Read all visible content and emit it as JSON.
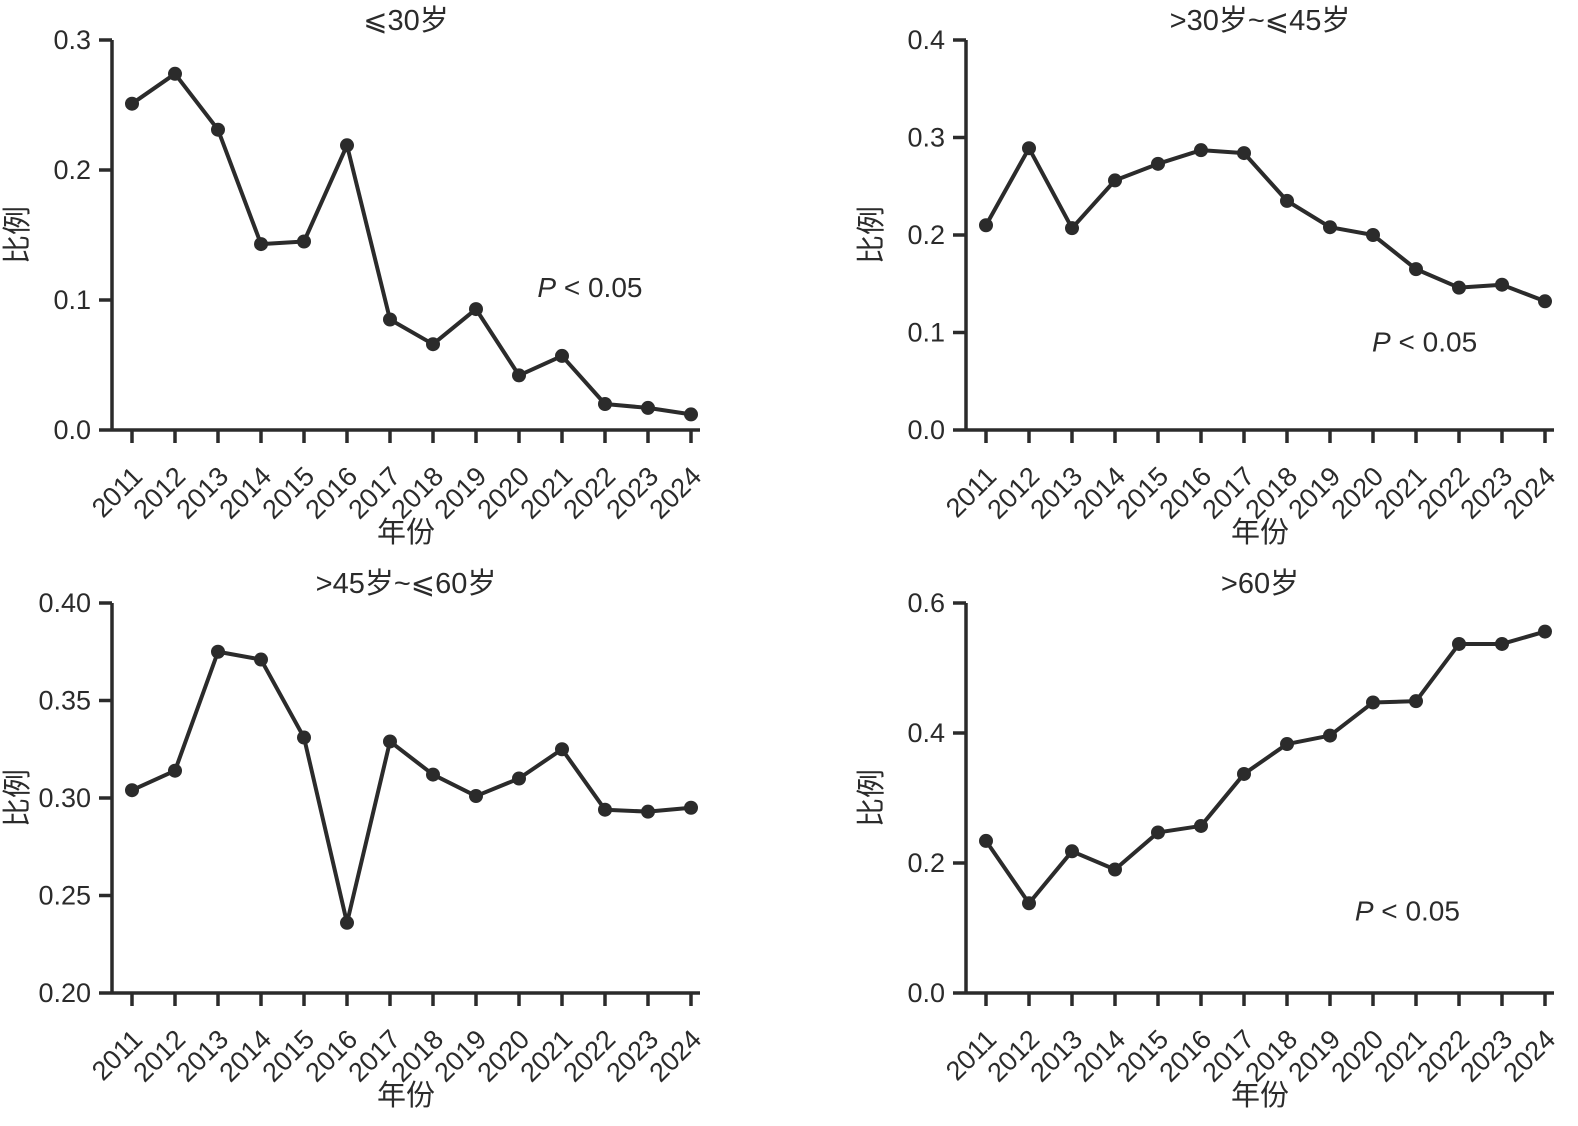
{
  "page": {
    "background": "#ffffff",
    "ink": "#2b2b2b"
  },
  "chart_data": [
    {
      "id": "age-le-30",
      "type": "line",
      "title": "⩽30岁",
      "xlabel": "年份",
      "ylabel": "比例",
      "categories": [
        "2011",
        "2012",
        "2013",
        "2014",
        "2015",
        "2016",
        "2017",
        "2018",
        "2019",
        "2020",
        "2021",
        "2022",
        "2023",
        "2024"
      ],
      "values": [
        0.251,
        0.274,
        0.231,
        0.143,
        0.145,
        0.219,
        0.085,
        0.066,
        0.093,
        0.042,
        0.057,
        0.02,
        0.017,
        0.012
      ],
      "ylim": [
        0.0,
        0.3
      ],
      "yticks": [
        0.0,
        0.1,
        0.2,
        0.3
      ],
      "ytick_labels": [
        "0.0",
        "0.1",
        "0.2",
        "0.3"
      ],
      "grid": false,
      "legend": null,
      "marker": "circle",
      "annotation": {
        "text": "P < 0.05",
        "x_index": 10.65,
        "y": 0.11
      }
    },
    {
      "id": "age-30-45",
      "type": "line",
      "title": ">30岁~⩽45岁",
      "xlabel": "年份",
      "ylabel": "比例",
      "categories": [
        "2011",
        "2012",
        "2013",
        "2014",
        "2015",
        "2016",
        "2017",
        "2018",
        "2019",
        "2020",
        "2021",
        "2022",
        "2023",
        "2024"
      ],
      "values": [
        0.21,
        0.289,
        0.207,
        0.256,
        0.273,
        0.287,
        0.284,
        0.235,
        0.208,
        0.2,
        0.165,
        0.146,
        0.149,
        0.132
      ],
      "ylim": [
        0.0,
        0.4
      ],
      "yticks": [
        0.0,
        0.1,
        0.2,
        0.3,
        0.4
      ],
      "ytick_labels": [
        "0.0",
        "0.1",
        "0.2",
        "0.3",
        "0.4"
      ],
      "grid": false,
      "legend": null,
      "marker": "circle",
      "annotation": {
        "text": "P < 0.05",
        "x_index": 10.2,
        "y": 0.091
      }
    },
    {
      "id": "age-45-60",
      "type": "line",
      "title": ">45岁~⩽60岁",
      "xlabel": "年份",
      "ylabel": "比例",
      "categories": [
        "2011",
        "2012",
        "2013",
        "2014",
        "2015",
        "2016",
        "2017",
        "2018",
        "2019",
        "2020",
        "2021",
        "2022",
        "2023",
        "2024"
      ],
      "values": [
        0.304,
        0.314,
        0.375,
        0.371,
        0.331,
        0.236,
        0.329,
        0.312,
        0.301,
        0.31,
        0.325,
        0.294,
        0.293,
        0.295
      ],
      "ylim": [
        0.2,
        0.4
      ],
      "yticks": [
        0.2,
        0.25,
        0.3,
        0.35,
        0.4
      ],
      "ytick_labels": [
        "0.20",
        "0.25",
        "0.30",
        "0.35",
        "0.40"
      ],
      "grid": false,
      "legend": null,
      "marker": "circle",
      "annotation": null
    },
    {
      "id": "age-gt-60",
      "type": "line",
      "title": ">60岁",
      "xlabel": "年份",
      "ylabel": "比例",
      "categories": [
        "2011",
        "2012",
        "2013",
        "2014",
        "2015",
        "2016",
        "2017",
        "2018",
        "2019",
        "2020",
        "2021",
        "2022",
        "2023",
        "2024"
      ],
      "values": [
        0.234,
        0.138,
        0.218,
        0.19,
        0.247,
        0.257,
        0.337,
        0.383,
        0.396,
        0.447,
        0.449,
        0.537,
        0.537,
        0.556
      ],
      "ylim": [
        0.0,
        0.6
      ],
      "yticks": [
        0.0,
        0.2,
        0.4,
        0.6
      ],
      "ytick_labels": [
        "0.0",
        "0.2",
        "0.4",
        "0.6"
      ],
      "grid": false,
      "legend": null,
      "marker": "circle",
      "annotation": {
        "text": "P < 0.05",
        "x_index": 9.8,
        "y": 0.127
      }
    }
  ]
}
